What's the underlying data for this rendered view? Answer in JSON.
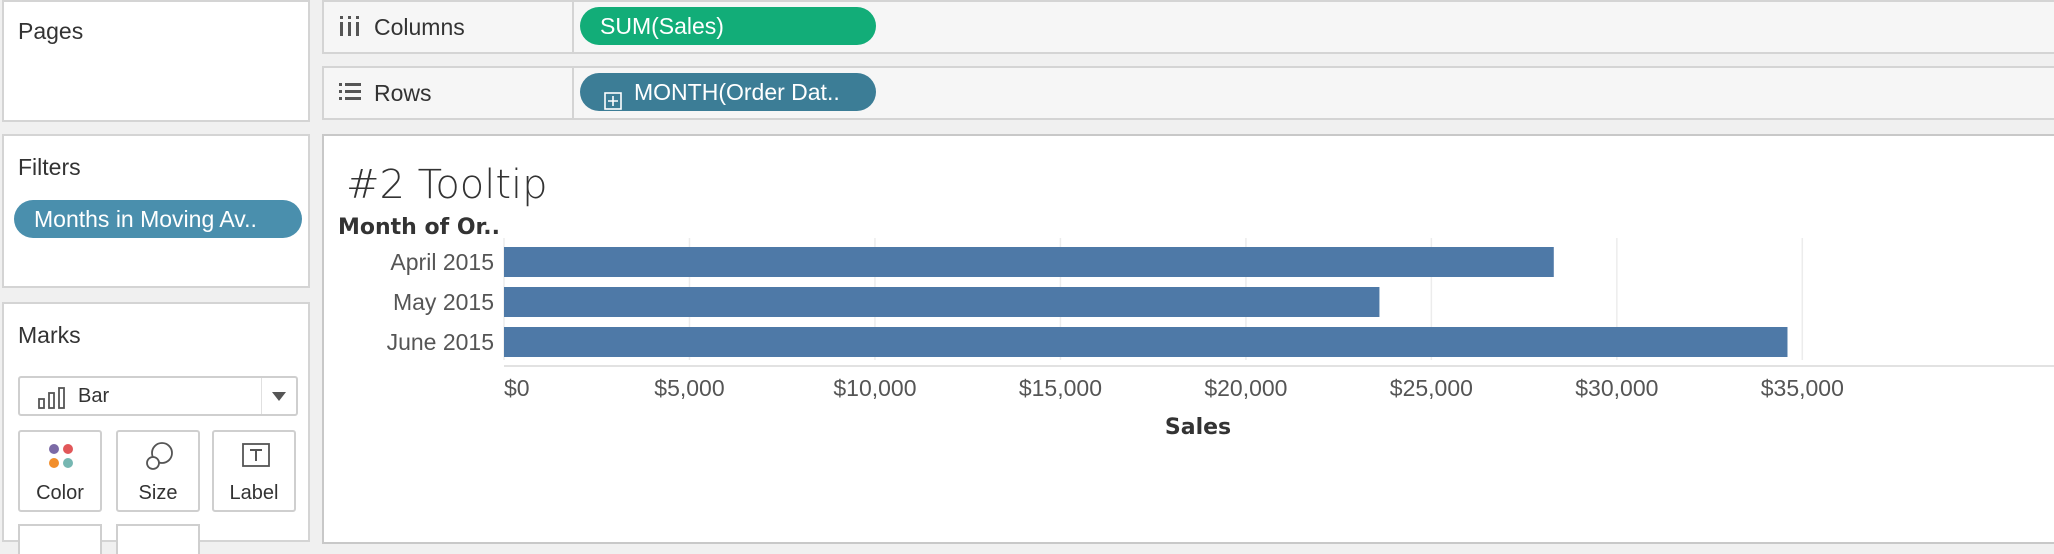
{
  "cards": {
    "pages": {
      "title": "Pages"
    },
    "filters": {
      "title": "Filters",
      "pills": [
        "Months in Moving Av.."
      ]
    },
    "marks": {
      "title": "Marks",
      "mark_type": "Bar",
      "mark_type_icon": "bar-chart-icon",
      "buttons": [
        {
          "label": "Color",
          "icon": "color-dots-icon"
        },
        {
          "label": "Size",
          "icon": "size-circles-icon"
        },
        {
          "label": "Label",
          "icon": "text-label-icon"
        }
      ]
    }
  },
  "shelves": {
    "columns": {
      "label": "Columns",
      "icon": "columns-icon",
      "pill": "SUM(Sales)"
    },
    "rows": {
      "label": "Rows",
      "icon": "rows-icon",
      "pill": "MONTH(Order Dat..",
      "pill_icon": "expand-plus-icon"
    }
  },
  "colors": {
    "bar": "#4e79a7",
    "filter_pill": "#4a8fad",
    "dimension_pill": "#3c7d96",
    "measure_pill": "#12ad78"
  },
  "view": {
    "title": "#2 Tooltip",
    "chart_data": {
      "type": "bar",
      "orientation": "horizontal",
      "row_header": "Month of Or..",
      "categories": [
        "April 2015",
        "May 2015",
        "June 2015"
      ],
      "values": [
        28300,
        23600,
        34600
      ],
      "xlabel": "Sales",
      "xlim": [
        0,
        35800
      ],
      "ticks": [
        0,
        5000,
        10000,
        15000,
        20000,
        25000,
        30000,
        35000
      ],
      "tick_labels": [
        "$0",
        "$5,000",
        "$10,000",
        "$15,000",
        "$20,000",
        "$25,000",
        "$30,000",
        "$35,000"
      ],
      "grid": true
    }
  }
}
